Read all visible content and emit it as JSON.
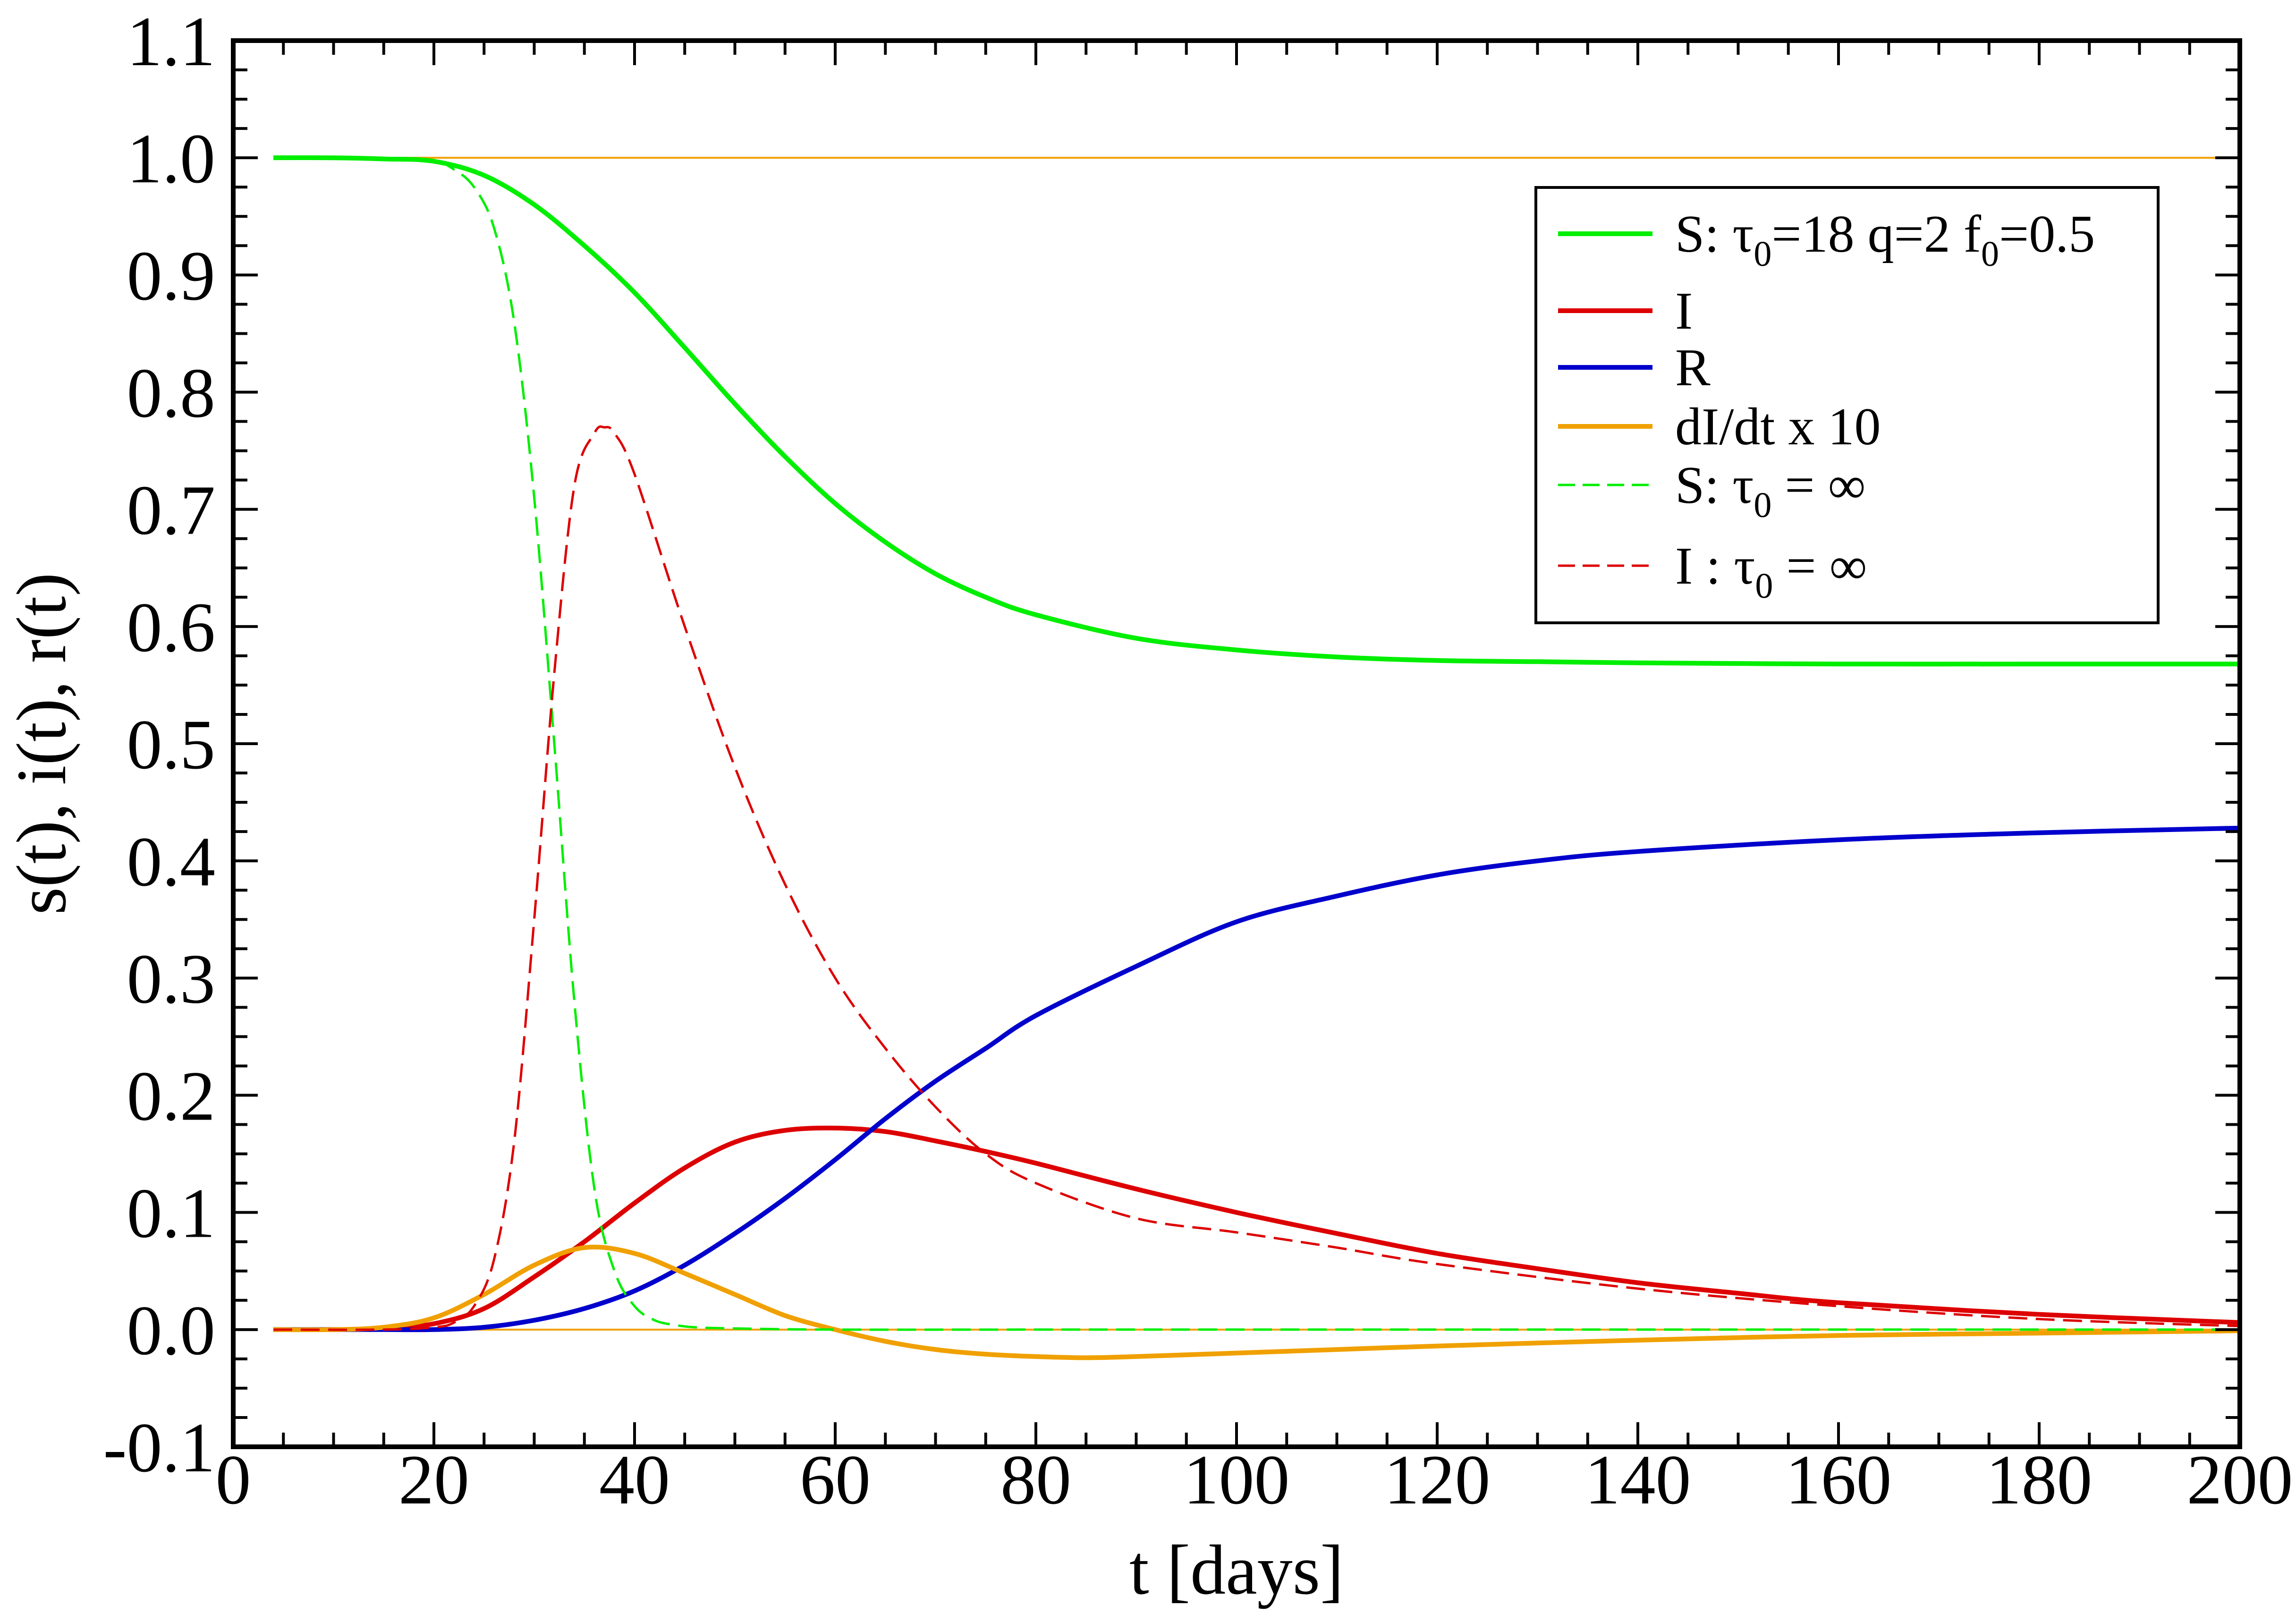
{
  "chart_data": {
    "type": "line",
    "xlabel": "t [days]",
    "ylabel": "s(t), i(t), r(t)",
    "xlim": [
      0,
      200
    ],
    "ylim": [
      -0.1,
      1.1
    ],
    "x_ticks": [
      "0",
      "20",
      "40",
      "60",
      "80",
      "100",
      "120",
      "140",
      "160",
      "180",
      "200"
    ],
    "y_ticks": [
      "-0.1",
      "0.0",
      "0.1",
      "0.2",
      "0.3",
      "0.4",
      "0.5",
      "0.6",
      "0.7",
      "0.8",
      "0.9",
      "1.0",
      "1.1"
    ],
    "grid": false,
    "legend_position": "top-right",
    "legend": [
      {
        "label": "S: τ0=18  q=2  f0=0.5",
        "parts": [
          "S: τ",
          "0",
          "=18  q=2  f",
          "0",
          "=0.5"
        ],
        "color": "#00ee00",
        "dash": "solid"
      },
      {
        "label": "I",
        "parts": [
          "I"
        ],
        "color": "#dd0000",
        "dash": "solid"
      },
      {
        "label": "R",
        "parts": [
          "R"
        ],
        "color": "#0000cc",
        "dash": "solid"
      },
      {
        "label": "dI/dt  x 10",
        "parts": [
          "dI/dt  x 10"
        ],
        "color": "#f0a000",
        "dash": "solid"
      },
      {
        "label": "S:  τ0 = ∞",
        "parts": [
          "S:  τ",
          "0",
          " = ∞"
        ],
        "color": "#00ee00",
        "dash": "dashed"
      },
      {
        "label": "I :  τ0 = ∞",
        "parts": [
          "I :  τ",
          "0",
          " = ∞"
        ],
        "color": "#dd0000",
        "dash": "dashed"
      }
    ],
    "series": [
      {
        "name": "S: τ0=18  q=2  f0=0.5",
        "color": "#00ee00",
        "dash": "solid",
        "x": [
          4,
          10,
          15,
          20,
          25,
          30,
          35,
          40,
          45,
          50,
          55,
          60,
          65,
          70,
          75,
          80,
          90,
          100,
          110,
          120,
          130,
          140,
          160,
          180,
          200
        ],
        "y": [
          1.0,
          1.0,
          0.999,
          0.997,
          0.985,
          0.96,
          0.925,
          0.885,
          0.838,
          0.79,
          0.745,
          0.705,
          0.672,
          0.645,
          0.625,
          0.61,
          0.59,
          0.58,
          0.574,
          0.571,
          0.57,
          0.569,
          0.568,
          0.568,
          0.568
        ]
      },
      {
        "name": "I",
        "color": "#dd0000",
        "dash": "solid",
        "x": [
          4,
          10,
          15,
          20,
          25,
          30,
          35,
          40,
          45,
          50,
          55,
          60,
          65,
          70,
          75,
          80,
          90,
          100,
          110,
          120,
          130,
          140,
          150,
          160,
          180,
          200
        ],
        "y": [
          0.0,
          0.0,
          0.001,
          0.005,
          0.018,
          0.045,
          0.075,
          0.108,
          0.138,
          0.16,
          0.17,
          0.172,
          0.169,
          0.161,
          0.152,
          0.142,
          0.12,
          0.1,
          0.082,
          0.065,
          0.052,
          0.04,
          0.031,
          0.023,
          0.013,
          0.006
        ]
      },
      {
        "name": "R",
        "color": "#0000cc",
        "dash": "solid",
        "x": [
          4,
          10,
          15,
          20,
          25,
          30,
          35,
          40,
          45,
          50,
          55,
          60,
          65,
          70,
          75,
          80,
          90,
          100,
          110,
          120,
          130,
          140,
          160,
          180,
          200
        ],
        "y": [
          0.0,
          0.0,
          0.0,
          0.0,
          0.002,
          0.008,
          0.018,
          0.033,
          0.055,
          0.082,
          0.112,
          0.145,
          0.18,
          0.212,
          0.24,
          0.268,
          0.31,
          0.348,
          0.37,
          0.388,
          0.4,
          0.408,
          0.418,
          0.424,
          0.428
        ]
      },
      {
        "name": "dI/dt  x 10",
        "color": "#f0a000",
        "dash": "solid",
        "x": [
          4,
          10,
          15,
          20,
          25,
          30,
          35,
          40,
          45,
          50,
          55,
          60,
          65,
          70,
          75,
          80,
          85,
          90,
          100,
          110,
          120,
          140,
          160,
          180,
          200
        ],
        "y": [
          0.0,
          0.0,
          0.002,
          0.01,
          0.03,
          0.055,
          0.07,
          0.065,
          0.048,
          0.03,
          0.012,
          0.0,
          -0.01,
          -0.017,
          -0.021,
          -0.023,
          -0.024,
          -0.023,
          -0.02,
          -0.017,
          -0.014,
          -0.009,
          -0.005,
          -0.003,
          -0.001
        ]
      },
      {
        "name": "S:  τ0 = ∞",
        "color": "#00ee00",
        "dash": "dashed",
        "x": [
          4,
          10,
          15,
          20,
          22,
          24,
          26,
          28,
          30,
          32,
          34,
          36,
          38,
          40,
          42,
          44,
          46,
          50,
          60,
          80,
          100,
          150,
          200
        ],
        "y": [
          1.0,
          1.0,
          0.999,
          0.997,
          0.99,
          0.975,
          0.94,
          0.86,
          0.71,
          0.5,
          0.28,
          0.12,
          0.05,
          0.02,
          0.008,
          0.004,
          0.002,
          0.001,
          0.0,
          0.0,
          0.0,
          0.0,
          0.0
        ]
      },
      {
        "name": "I :  τ0 = ∞",
        "color": "#dd0000",
        "dash": "dashed",
        "x": [
          4,
          15,
          20,
          22,
          24,
          26,
          28,
          30,
          32,
          34,
          36,
          37,
          38,
          40,
          45,
          50,
          55,
          60,
          65,
          70,
          75,
          80,
          90,
          100,
          110,
          120,
          140,
          160,
          180,
          200
        ],
        "y": [
          0.0,
          0.0,
          0.002,
          0.006,
          0.02,
          0.06,
          0.16,
          0.35,
          0.56,
          0.72,
          0.765,
          0.77,
          0.765,
          0.73,
          0.6,
          0.48,
          0.38,
          0.3,
          0.24,
          0.19,
          0.15,
          0.125,
          0.095,
          0.083,
          0.07,
          0.056,
          0.035,
          0.02,
          0.009,
          0.003
        ]
      }
    ],
    "reference_lines": [
      {
        "y": 1.0,
        "color": "#f0a000"
      },
      {
        "y": 0.0,
        "color": "#f0a000"
      }
    ]
  }
}
